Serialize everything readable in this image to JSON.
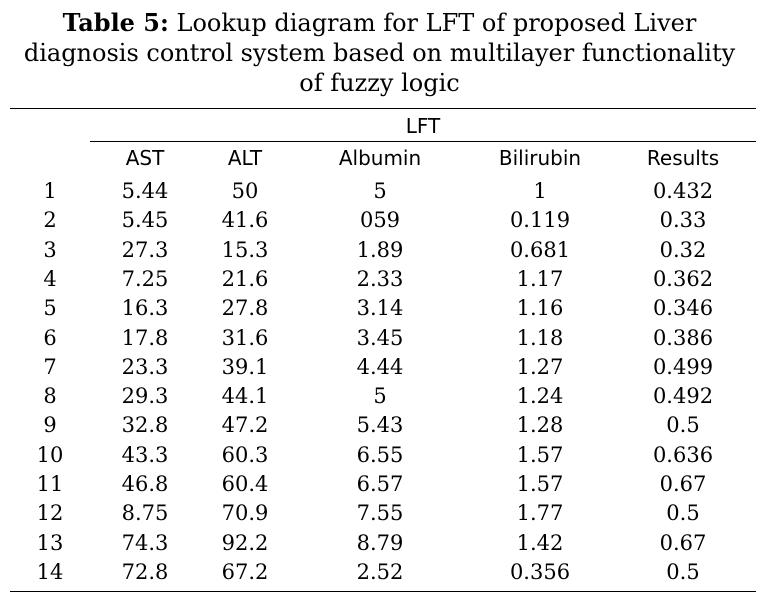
{
  "caption": {
    "label": "Table 5:",
    "text_line1": "Lookup diagram for LFT of proposed Liver",
    "text_line2": "diagnosis control system based on multilayer functionality",
    "text_line3": "of fuzzy logic"
  },
  "table": {
    "group_header": "LFT",
    "columns": [
      "",
      "AST",
      "ALT",
      "Albumin",
      "Bilirubin",
      "Results"
    ],
    "rows": [
      [
        "1",
        "5.44",
        "50",
        "5",
        "1",
        "0.432"
      ],
      [
        "2",
        "5.45",
        "41.6",
        "059",
        "0.119",
        "0.33"
      ],
      [
        "3",
        "27.3",
        "15.3",
        "1.89",
        "0.681",
        "0.32"
      ],
      [
        "4",
        "7.25",
        "21.6",
        "2.33",
        "1.17",
        "0.362"
      ],
      [
        "5",
        "16.3",
        "27.8",
        "3.14",
        "1.16",
        "0.346"
      ],
      [
        "6",
        "17.8",
        "31.6",
        "3.45",
        "1.18",
        "0.386"
      ],
      [
        "7",
        "23.3",
        "39.1",
        "4.44",
        "1.27",
        "0.499"
      ],
      [
        "8",
        "29.3",
        "44.1",
        "5",
        "1.24",
        "0.492"
      ],
      [
        "9",
        "32.8",
        "47.2",
        "5.43",
        "1.28",
        "0.5"
      ],
      [
        "10",
        "43.3",
        "60.3",
        "6.55",
        "1.57",
        "0.636"
      ],
      [
        "11",
        "46.8",
        "60.4",
        "6.57",
        "1.57",
        "0.67"
      ],
      [
        "12",
        "8.75",
        "70.9",
        "7.55",
        "1.77",
        "0.5"
      ],
      [
        "13",
        "74.3",
        "92.2",
        "8.79",
        "1.42",
        "0.67"
      ],
      [
        "14",
        "72.8",
        "67.2",
        "2.52",
        "0.356",
        "0.5"
      ]
    ]
  }
}
